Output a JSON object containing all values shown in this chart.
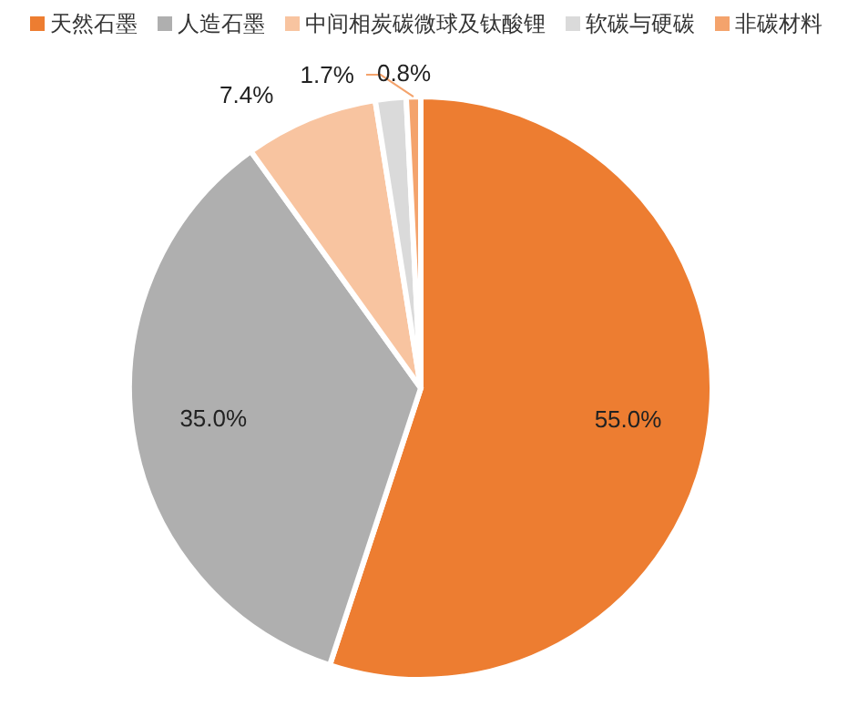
{
  "chart_data": {
    "type": "pie",
    "categories": [
      "天然石墨",
      "人造石墨",
      "中间相炭碳微球及钛酸锂",
      "软碳与硬碳",
      "非碳材料"
    ],
    "values": [
      55.0,
      35.0,
      7.4,
      1.7,
      0.8
    ],
    "colors": [
      "#ed7d31",
      "#afafaf",
      "#f8c4a0",
      "#dadada",
      "#f4a36c"
    ],
    "value_labels": [
      "55.0%",
      "35.0%",
      "7.4%",
      "1.7%",
      "0.8%"
    ],
    "legend": "top"
  }
}
